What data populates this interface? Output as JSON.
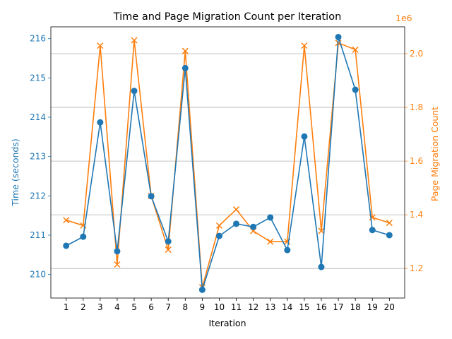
{
  "chart_data": {
    "type": "line",
    "title": "Time and Page Migration Count per Iteration",
    "xlabel": "Iteration",
    "x": [
      1,
      2,
      3,
      4,
      5,
      6,
      7,
      8,
      9,
      10,
      11,
      12,
      13,
      14,
      15,
      16,
      17,
      18,
      19,
      20
    ],
    "xlim": [
      0.1,
      20.9
    ],
    "grid": "horizontal lines on right axis",
    "y_left": {
      "label": "Time (seconds)",
      "ylim": [
        209.4,
        216.3
      ],
      "ticks": [
        210,
        211,
        212,
        213,
        214,
        215,
        216
      ],
      "color": "#1f77b4"
    },
    "y_right": {
      "label": "Page Migration Count",
      "scale_note": "1e6",
      "ylim": [
        1.09,
        2.1
      ],
      "ticks": [
        1.2,
        1.4,
        1.6,
        1.8,
        2.0
      ],
      "color": "#ff7f0e"
    },
    "series": [
      {
        "name": "Time (seconds)",
        "axis": "left",
        "marker": "circle",
        "color": "#1f77b4",
        "values": [
          210.73,
          210.96,
          213.87,
          210.59,
          214.67,
          211.99,
          210.84,
          215.25,
          209.61,
          210.98,
          211.29,
          211.21,
          211.45,
          210.62,
          213.51,
          210.19,
          216.04,
          214.7,
          211.13,
          211.0
        ]
      },
      {
        "name": "Page Migration Count",
        "axis": "right",
        "marker": "x",
        "color": "#ff7f0e",
        "values": [
          1.38,
          1.36,
          2.03,
          1.215,
          2.05,
          1.47,
          1.27,
          2.01,
          1.13,
          1.36,
          1.42,
          1.34,
          1.3,
          1.3,
          2.03,
          1.34,
          2.04,
          2.015,
          1.39,
          1.37
        ]
      }
    ]
  }
}
